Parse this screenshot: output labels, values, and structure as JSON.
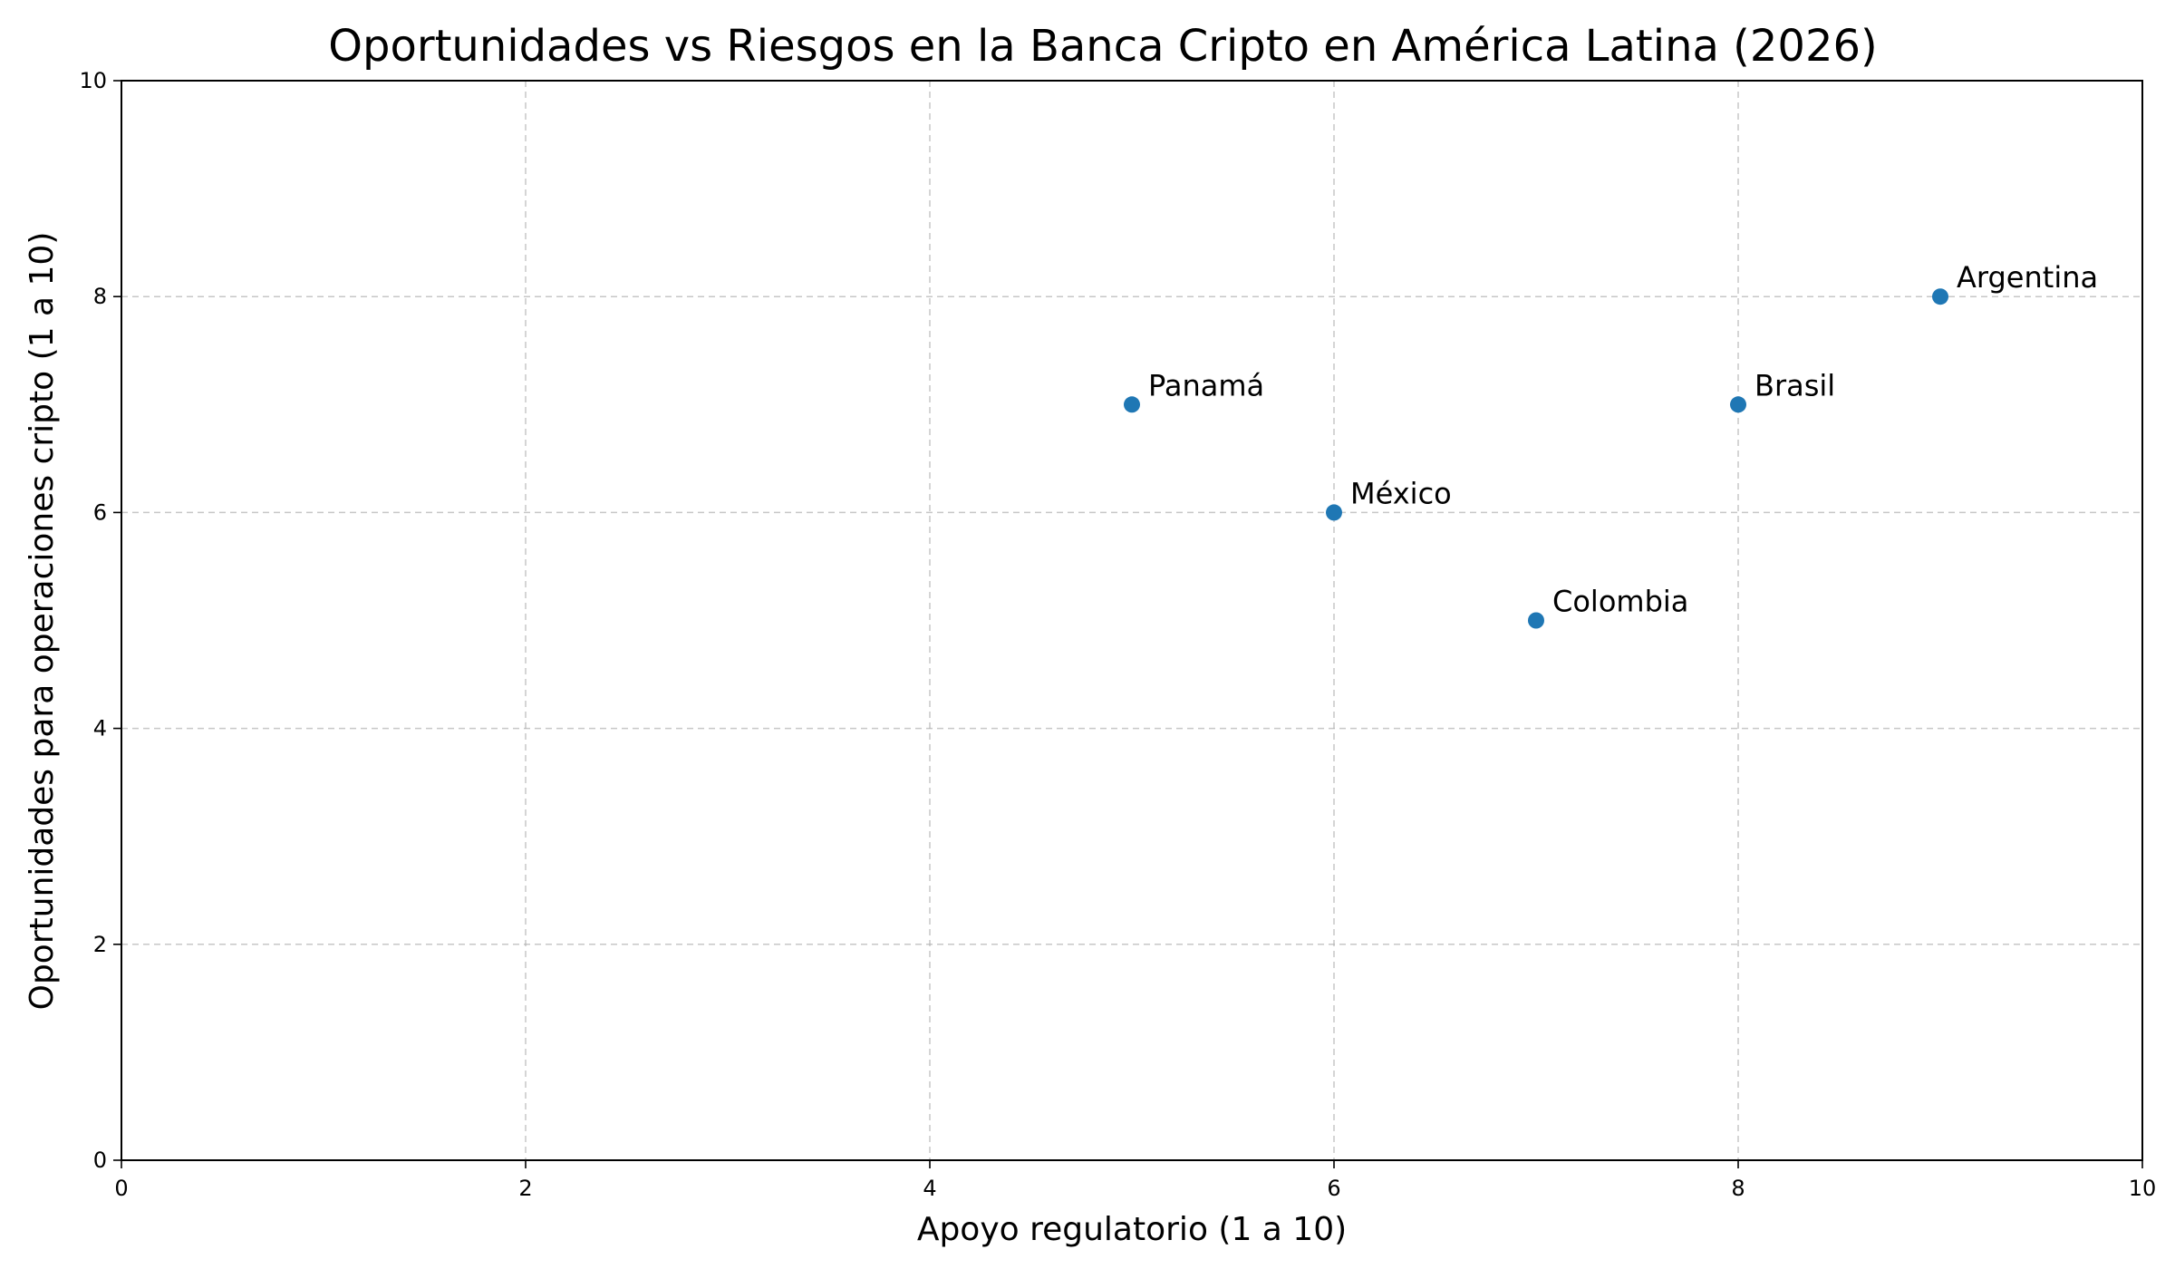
{
  "chart_data": {
    "type": "scatter",
    "title": "Oportunidades vs Riesgos en la Banca Cripto en América Latina (2026)",
    "xlabel": "Apoyo regulatorio (1 a 10)",
    "ylabel": "Oportunidades para operaciones cripto (1 a 10)",
    "xlim": [
      0,
      10
    ],
    "ylim": [
      0,
      10
    ],
    "xticks": [
      0,
      2,
      4,
      6,
      8,
      10
    ],
    "yticks": [
      0,
      2,
      4,
      6,
      8,
      10
    ],
    "grid": true,
    "marker_color": "#1f77b4",
    "points": [
      {
        "label": "México",
        "x": 6,
        "y": 6
      },
      {
        "label": "Brasil",
        "x": 8,
        "y": 7
      },
      {
        "label": "Argentina",
        "x": 9,
        "y": 8
      },
      {
        "label": "Colombia",
        "x": 7,
        "y": 5
      },
      {
        "label": "Panamá",
        "x": 5,
        "y": 7
      }
    ]
  }
}
